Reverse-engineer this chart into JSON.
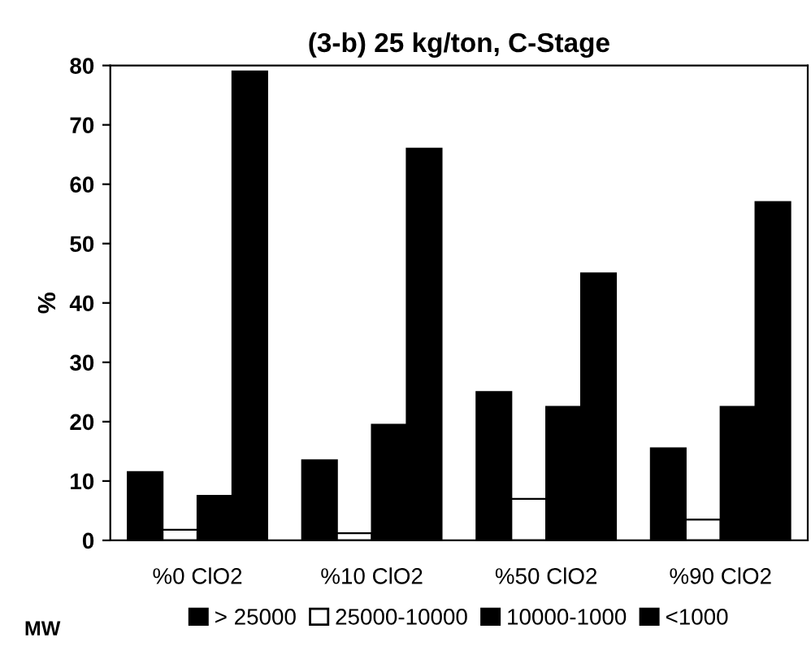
{
  "chart_data": {
    "type": "bar",
    "title": "(3-b) 25 kg/ton, C-Stage",
    "ylabel": "%",
    "categories": [
      "%0 ClO2",
      "%10 ClO2",
      "%50 ClO2",
      "%90 ClO2"
    ],
    "series": [
      {
        "name": "> 25000",
        "color": "#000000",
        "values": [
          11.5,
          13.5,
          25,
          15.5
        ]
      },
      {
        "name": "25000-10000",
        "color": "#ffffff",
        "values": [
          1.8,
          1.2,
          7,
          3.5
        ]
      },
      {
        "name": "10000-1000",
        "color": "#000000",
        "values": [
          7.5,
          19.5,
          22.5,
          22.5
        ]
      },
      {
        "name": "<1000",
        "color": "#000000",
        "values": [
          79,
          66,
          45,
          57
        ]
      }
    ],
    "ylim": [
      0,
      80
    ],
    "yticks": [
      0,
      10,
      20,
      30,
      40,
      50,
      60,
      70,
      80
    ],
    "grid": false,
    "legend": "bottom",
    "legend_title": "MW"
  }
}
